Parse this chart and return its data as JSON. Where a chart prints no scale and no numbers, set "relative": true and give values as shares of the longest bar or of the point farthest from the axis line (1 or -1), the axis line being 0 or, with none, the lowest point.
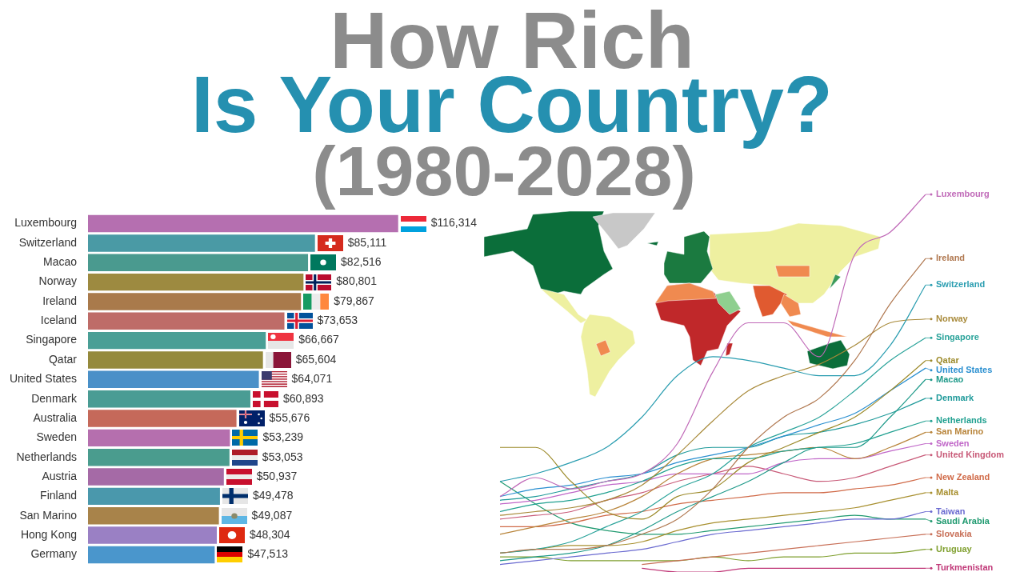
{
  "chart_data": [
    {
      "type": "bar",
      "orientation": "horizontal",
      "title": "How Rich\nIs Your Country?",
      "subtitle": "(1980-2028)",
      "tick_labels": "y",
      "categories": [
        "Luxembourg",
        "Switzerland",
        "Macao",
        "Norway",
        "Ireland",
        "Iceland",
        "Singapore",
        "Qatar",
        "United States",
        "Denmark",
        "Australia",
        "Sweden",
        "Netherlands",
        "Austria",
        "Finland",
        "San Marino",
        "Hong Kong",
        "Germany"
      ],
      "values": [
        116314,
        85111,
        82516,
        80801,
        79867,
        73653,
        66667,
        65604,
        64071,
        60893,
        55676,
        53239,
        53053,
        50937,
        49478,
        49087,
        48304,
        47513
      ],
      "value_labels": [
        "$116,314",
        "$85,111",
        "$82,516",
        "$80,801",
        "$79,867",
        "$73,653",
        "$66,667",
        "$65,604",
        "$64,071",
        "$60,893",
        "$55,676",
        "$53,239",
        "$53,053",
        "$50,937",
        "$49,478",
        "$49,087",
        "$48,304",
        "$47,513"
      ],
      "colors": [
        "#b56fb0",
        "#4a9aa5",
        "#4a9a8f",
        "#9d8a40",
        "#a97a4b",
        "#be6c68",
        "#4a9f96",
        "#958a3c",
        "#4a90c8",
        "#4a9c94",
        "#c5695a",
        "#b56fae",
        "#4a9c8e",
        "#a56aa6",
        "#4a98ac",
        "#a8834a",
        "#9a80c4",
        "#4a96cc"
      ]
    },
    {
      "type": "line",
      "relative": true,
      "tick_labels": false,
      "marker": "none",
      "legend": "right",
      "categories": [
        null,
        null,
        null,
        null,
        null,
        null,
        null,
        null,
        null,
        null,
        null,
        null,
        null
      ],
      "series": [
        {
          "name": "Luxembourg",
          "color": "#c06ab8",
          "values": [
            0.2,
            0.25,
            0.22,
            0.24,
            0.26,
            0.34,
            0.53,
            0.66,
            0.66,
            0.57,
            0.84,
            0.9,
            1
          ]
        },
        {
          "name": "Ireland",
          "color": "#b07850",
          "values": [
            0.05,
            0.06,
            0.06,
            0.07,
            0.1,
            0.14,
            0.22,
            0.33,
            0.41,
            0.46,
            0.56,
            0.71,
            0.83
          ]
        },
        {
          "name": "Switzerland",
          "color": "#2a9db0",
          "values": [
            0.24,
            0.26,
            0.29,
            0.33,
            0.41,
            0.52,
            0.57,
            0.56,
            0.54,
            0.52,
            0.52,
            0.6,
            0.76
          ]
        },
        {
          "name": "Norway",
          "color": "#a88a3a",
          "values": [
            0.15,
            0.16,
            0.17,
            0.19,
            0.23,
            0.31,
            0.4,
            0.48,
            0.52,
            0.55,
            0.6,
            0.66,
            0.67
          ]
        },
        {
          "name": "Singapore",
          "color": "#2aa39a",
          "values": [
            0.05,
            0.06,
            0.08,
            0.12,
            0.16,
            0.22,
            0.26,
            0.33,
            0.37,
            0.41,
            0.48,
            0.56,
            0.62
          ]
        },
        {
          "name": "Qatar",
          "color": "#9c8a2a",
          "values": [
            0.33,
            0.33,
            0.24,
            0.16,
            0.14,
            0.2,
            0.22,
            0.29,
            0.33,
            0.37,
            0.41,
            0.48,
            0.56
          ]
        },
        {
          "name": "United States",
          "color": "#2a8fd0",
          "values": [
            0.2,
            0.22,
            0.23,
            0.25,
            0.26,
            0.29,
            0.31,
            0.33,
            0.36,
            0.39,
            0.42,
            0.48,
            0.54
          ]
        },
        {
          "name": "Macao",
          "color": "#1f9a8a",
          "values": [
            0.03,
            0.04,
            0.05,
            0.07,
            0.11,
            0.16,
            0.2,
            0.24,
            0.29,
            0.33,
            0.33,
            0.41,
            0.51
          ]
        },
        {
          "name": "Denmark",
          "color": "#1f9a9a",
          "values": [
            0.19,
            0.2,
            0.22,
            0.24,
            0.26,
            0.31,
            0.33,
            0.33,
            0.36,
            0.37,
            0.39,
            0.42,
            0.46
          ]
        },
        {
          "name": "Netherlands",
          "color": "#20a090",
          "values": [
            0.16,
            0.18,
            0.19,
            0.21,
            0.24,
            0.28,
            0.3,
            0.3,
            0.32,
            0.33,
            0.34,
            0.37,
            0.4
          ]
        },
        {
          "name": "San Marino",
          "color": "#b8843a",
          "values": [
            0.1,
            0.12,
            0.14,
            0.16,
            0.2,
            0.26,
            0.3,
            0.31,
            0.32,
            0.33,
            0.3,
            0.33,
            0.37
          ]
        },
        {
          "name": "Sweden",
          "color": "#c067c8",
          "values": [
            0.18,
            0.19,
            0.21,
            0.23,
            0.24,
            0.26,
            0.26,
            0.26,
            0.29,
            0.3,
            0.3,
            0.32,
            0.34
          ]
        },
        {
          "name": "United Kingdom",
          "color": "#c85a78",
          "values": [
            0.14,
            0.15,
            0.16,
            0.19,
            0.21,
            0.24,
            0.26,
            0.28,
            0.26,
            0.24,
            0.25,
            0.28,
            0.31
          ]
        },
        {
          "name": "New Zealand",
          "color": "#d06a48",
          "values": [
            0.12,
            0.12,
            0.13,
            0.15,
            0.16,
            0.18,
            0.19,
            0.2,
            0.21,
            0.21,
            0.22,
            0.23,
            0.25
          ]
        },
        {
          "name": "Malta",
          "color": "#a89030",
          "values": [
            0.05,
            0.06,
            0.07,
            0.07,
            0.08,
            0.11,
            0.13,
            0.14,
            0.15,
            0.16,
            0.17,
            0.19,
            0.21
          ]
        },
        {
          "name": "Taiwan",
          "color": "#6a6ad0",
          "values": [
            0.02,
            0.03,
            0.04,
            0.05,
            0.06,
            0.08,
            0.1,
            0.11,
            0.12,
            0.13,
            0.14,
            0.14,
            0.16
          ]
        },
        {
          "name": "Saudi Arabia",
          "color": "#209a70",
          "values": [
            0.24,
            0.18,
            0.13,
            0.11,
            0.1,
            0.1,
            0.11,
            0.12,
            0.13,
            0.14,
            0.15,
            0.14,
            0.14
          ]
        },
        {
          "name": "Slovakia",
          "color": "#c87058",
          "values": [
            null,
            null,
            null,
            null,
            0.02,
            0.03,
            0.04,
            0.05,
            0.06,
            0.07,
            0.08,
            0.09,
            0.1
          ]
        },
        {
          "name": "Uruguay",
          "color": "#80a030",
          "values": [
            0.04,
            0.04,
            0.03,
            0.03,
            0.03,
            0.03,
            0.04,
            0.03,
            0.04,
            0.04,
            0.05,
            0.05,
            0.06
          ]
        },
        {
          "name": "Turkmenistan",
          "color": "#c03878",
          "values": [
            null,
            null,
            null,
            null,
            0.01,
            0,
            0,
            0.01,
            0.01,
            0.01,
            0.01,
            0.01,
            0.01
          ]
        }
      ]
    }
  ]
}
